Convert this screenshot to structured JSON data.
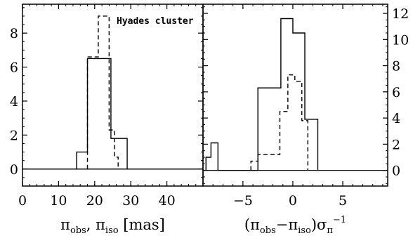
{
  "chart_data": [
    {
      "type": "histogram",
      "panel": "left",
      "annotation": "Hyades cluster",
      "xlabel": {
        "parts": [
          "π",
          "obs",
          ", π",
          "iso",
          " [mas]"
        ]
      },
      "xlim": [
        0,
        50
      ],
      "ylim": [
        -1,
        9.7
      ],
      "xticks": [
        0,
        10,
        20,
        30,
        40
      ],
      "yticks": [
        0,
        2,
        4,
        6,
        8
      ],
      "zero_line": true,
      "series": [
        {
          "style": "solid",
          "steps": [
            [
              15,
              1
            ],
            [
              18,
              6.5
            ],
            [
              24.5,
              1.8
            ],
            [
              29,
              0
            ]
          ]
        },
        {
          "style": "dashed",
          "steps": [
            [
              18,
              6.6
            ],
            [
              21,
              9.0
            ],
            [
              24,
              2.3
            ],
            [
              25.5,
              0.7
            ],
            [
              26.5,
              0
            ]
          ]
        }
      ]
    },
    {
      "type": "histogram",
      "panel": "right",
      "xlabel": {
        "parts": [
          "(π",
          "obs",
          "−π",
          "iso",
          ")σ",
          "π",
          "−1"
        ]
      },
      "xlim": [
        -9,
        9.5
      ],
      "ylim": [
        -1.2,
        12.7
      ],
      "xticks": [
        -5,
        0,
        5
      ],
      "yticks": [
        0,
        2,
        4,
        6,
        8,
        10,
        12
      ],
      "zero_line": true,
      "series": [
        {
          "style": "solid",
          "steps": [
            [
              -8.7,
              1.0
            ],
            [
              -8.2,
              2.1
            ],
            [
              -7.5,
              0
            ],
            [
              -3.5,
              6.3
            ],
            [
              -1.2,
              11.6
            ],
            [
              0,
              10.5
            ],
            [
              1.2,
              3.9
            ],
            [
              2.5,
              0
            ]
          ]
        },
        {
          "style": "dashed",
          "steps": [
            [
              -4.2,
              0.7
            ],
            [
              -3.5,
              1.2
            ],
            [
              -1.3,
              4.5
            ],
            [
              -0.5,
              7.3
            ],
            [
              0.2,
              6.8
            ],
            [
              0.9,
              3.8
            ],
            [
              1.5,
              0
            ]
          ]
        }
      ]
    }
  ]
}
